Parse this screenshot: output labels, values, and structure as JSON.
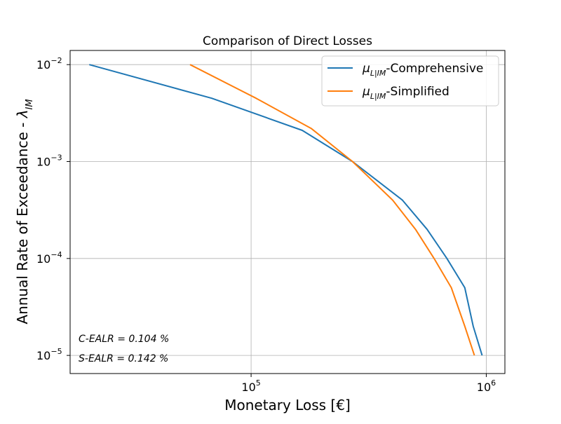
{
  "chart_data": {
    "type": "line",
    "title": "Comparison of Direct Losses",
    "xlabel": "Monetary Loss [€]",
    "ylabel": {
      "main": "Annual Rate of Exceedance - ",
      "symbol": "λ",
      "subscript": "IM"
    },
    "xscale": "log",
    "yscale": "log",
    "xlim": [
      17000,
      1200000
    ],
    "ylim": [
      6.5e-06,
      0.014
    ],
    "grid": true,
    "legend_position": "top-right",
    "x_ticks": [
      {
        "base": "10",
        "exp": "5",
        "value": 100000
      },
      {
        "base": "10",
        "exp": "6",
        "value": 1000000
      }
    ],
    "y_ticks": [
      {
        "base": "10",
        "exp": "−2",
        "value": 0.01
      },
      {
        "base": "10",
        "exp": "−3",
        "value": 0.001
      },
      {
        "base": "10",
        "exp": "−4",
        "value": 0.0001
      },
      {
        "base": "10",
        "exp": "−5",
        "value": 1e-05
      }
    ],
    "series": [
      {
        "name": {
          "symbol": "μ",
          "subscript": "L|IM",
          "suffix": "-Comprehensive"
        },
        "color": "#1f77b4",
        "x": [
          20500,
          68000,
          165000,
          270000,
          440000,
          560000,
          680000,
          810000,
          880000,
          960000
        ],
        "y": [
          0.01,
          0.0045,
          0.0021,
          0.001,
          0.0004,
          0.0002,
          0.0001,
          5e-05,
          2e-05,
          1e-05
        ]
      },
      {
        "name": {
          "symbol": "μ",
          "subscript": "L|IM",
          "suffix": "-Simplified"
        },
        "color": "#ff7f0e",
        "x": [
          55000,
          105000,
          180000,
          270000,
          400000,
          500000,
          600000,
          710000,
          810000,
          890000
        ],
        "y": [
          0.01,
          0.0045,
          0.0022,
          0.001,
          0.0004,
          0.0002,
          0.0001,
          5e-05,
          2e-05,
          1e-05
        ]
      }
    ],
    "annotations": [
      "C-EALR = 0.104 %",
      "S-EALR = 0.142 %"
    ]
  }
}
